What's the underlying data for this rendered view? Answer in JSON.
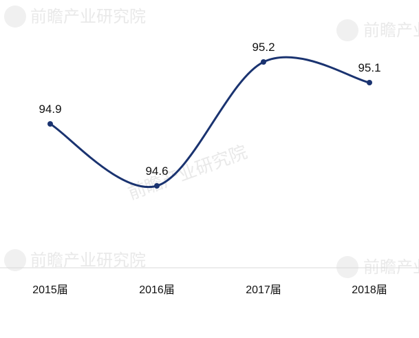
{
  "colors": {
    "line": "#1a3370",
    "axis": "#d9d9d9"
  },
  "watermark": {
    "brand": "前瞻产业研究院"
  },
  "chart_data": {
    "type": "line",
    "categories": [
      "2015届",
      "2016届",
      "2017届",
      "2018届"
    ],
    "values": [
      94.9,
      94.6,
      95.2,
      95.1
    ],
    "data_labels": [
      "94.9",
      "94.6",
      "95.2",
      "95.1"
    ],
    "smooth": true,
    "ylim": [
      94.35,
      95.3
    ],
    "grid": false,
    "legend": "none"
  }
}
